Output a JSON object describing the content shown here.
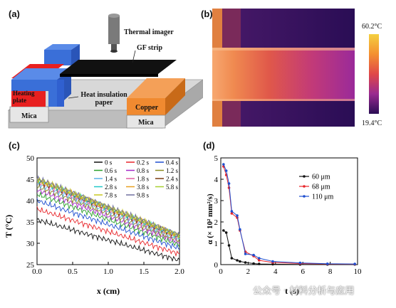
{
  "panel_labels": {
    "a": "(a)",
    "b": "(b)",
    "c": "(c)",
    "d": "(d)"
  },
  "schematic": {
    "thermal_imager": "Thermal imager",
    "gf_strip": "GF strip",
    "heating_plate": "Heating plate",
    "heat_insulation_paper": "Heat insulation paper",
    "mica_left": "Mica",
    "copper": "Copper",
    "mica_right": "Mica"
  },
  "thermal_image": {
    "max_label": "60.2°C",
    "min_label": "19.4°C"
  },
  "watermark": "公众号 · 材料分析与应用",
  "chart_data": [
    {
      "type": "line",
      "panel": "c",
      "xlabel": "x (cm)",
      "ylabel": "T (°C)",
      "xlim": [
        0.0,
        2.0
      ],
      "ylim": [
        25,
        50
      ],
      "xticks": [
        "0.0",
        "0.5",
        "1.0",
        "1.5",
        "2.0"
      ],
      "yticks": [
        "25",
        "30",
        "35",
        "40",
        "45",
        "50"
      ],
      "legend": "top-right",
      "series": [
        {
          "name": "0 s",
          "color": "#111111",
          "start": 35.5,
          "end": 26.0
        },
        {
          "name": "0.2 s",
          "color": "#e8262b",
          "start": 38.0,
          "end": 27.5
        },
        {
          "name": "0.4 s",
          "color": "#1f4fd0",
          "start": 40.0,
          "end": 28.8
        },
        {
          "name": "0.6 s",
          "color": "#2aa02a",
          "start": 41.5,
          "end": 29.6
        },
        {
          "name": "0.8 s",
          "color": "#a428c8",
          "start": 42.5,
          "end": 30.2
        },
        {
          "name": "1.2 s",
          "color": "#8a8a20",
          "start": 43.3,
          "end": 30.6
        },
        {
          "name": "1.4 s",
          "color": "#5ab0e8",
          "start": 43.9,
          "end": 31.0
        },
        {
          "name": "1.8 s",
          "color": "#e05aa0",
          "start": 44.3,
          "end": 31.3
        },
        {
          "name": "2.4 s",
          "color": "#7a3a10",
          "start": 44.6,
          "end": 31.5
        },
        {
          "name": "2.8 s",
          "color": "#20c8c8",
          "start": 44.8,
          "end": 31.6
        },
        {
          "name": "3.8 s",
          "color": "#e8a020",
          "start": 44.9,
          "end": 31.7
        },
        {
          "name": "5.8 s",
          "color": "#a8d030",
          "start": 45.0,
          "end": 31.8
        },
        {
          "name": "7.8 s",
          "color": "#c8c820",
          "start": 45.1,
          "end": 31.9
        },
        {
          "name": "9.8 s",
          "color": "#7070a0",
          "start": 45.2,
          "end": 32.0
        }
      ]
    },
    {
      "type": "line",
      "panel": "d",
      "xlabel": "t (s)",
      "ylabel": "α (× 10² mm²/s)",
      "xlim": [
        0,
        10
      ],
      "ylim": [
        0,
        5
      ],
      "xticks": [
        "0",
        "2",
        "4",
        "6",
        "8",
        "10"
      ],
      "yticks": [
        "0",
        "1",
        "2",
        "3",
        "4",
        "5"
      ],
      "legend": "top-right",
      "series": [
        {
          "name": "60 μm",
          "color": "#111111",
          "x": [
            0.2,
            0.4,
            0.6,
            0.8,
            1.2,
            1.4,
            1.8,
            2.4,
            2.8,
            3.8,
            5.8,
            7.8,
            9.8
          ],
          "y": [
            1.6,
            1.5,
            0.9,
            0.3,
            0.2,
            0.15,
            0.1,
            0.05,
            0.03,
            0.02,
            0.01,
            0.01,
            0.01
          ]
        },
        {
          "name": "68 μm",
          "color": "#e8262b",
          "x": [
            0.2,
            0.4,
            0.6,
            0.8,
            1.2,
            1.4,
            1.8,
            2.4,
            2.8,
            3.8,
            5.8,
            7.8,
            9.8
          ],
          "y": [
            4.6,
            4.2,
            3.6,
            2.4,
            2.2,
            1.6,
            0.6,
            0.4,
            0.2,
            0.1,
            0.05,
            0.03,
            0.02
          ]
        },
        {
          "name": "110 μm",
          "color": "#1f4fd0",
          "x": [
            0.2,
            0.4,
            0.6,
            0.8,
            1.2,
            1.4,
            1.8,
            2.4,
            2.8,
            3.8,
            5.8,
            7.8,
            9.8
          ],
          "y": [
            4.7,
            4.4,
            3.8,
            2.5,
            2.3,
            1.65,
            0.5,
            0.45,
            0.3,
            0.15,
            0.08,
            0.04,
            0.03
          ]
        }
      ]
    }
  ]
}
